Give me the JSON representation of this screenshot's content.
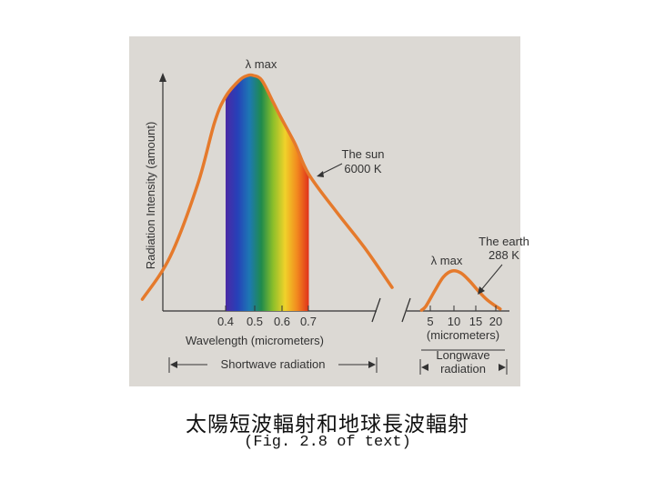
{
  "chart_data": [
    {
      "type": "line",
      "title": "",
      "ylabel": "Radiation Intensity (amount)",
      "xlabel": "Wavelength (micrometers)",
      "tick_labels": [
        "0.4",
        "0.5",
        "0.6",
        "0.7"
      ],
      "band_label": "Shortwave radiation",
      "peak_label": "λ max",
      "series": [
        {
          "name": "The sun 6000 K",
          "name_lines": [
            "The sun",
            "6000 K"
          ],
          "x": [
            0.1,
            0.2,
            0.3,
            0.36,
            0.4,
            0.45,
            0.48,
            0.5,
            0.53,
            0.57,
            0.6,
            0.65,
            0.7,
            0.8,
            0.9,
            1.0
          ],
          "y": [
            0.05,
            0.23,
            0.54,
            0.8,
            0.91,
            0.98,
            1.0,
            1.0,
            0.98,
            0.89,
            0.82,
            0.71,
            0.58,
            0.42,
            0.27,
            0.1
          ]
        }
      ],
      "visible_band": [
        0.4,
        0.7
      ],
      "grid": false
    },
    {
      "type": "line",
      "title": "",
      "xlabel": "(micrometers)",
      "tick_labels": [
        "5",
        "10",
        "15",
        "20"
      ],
      "band_label_lines": [
        "Longwave",
        "radiation"
      ],
      "peak_label": "λ max",
      "series": [
        {
          "name": "The earth 288 K",
          "name_lines": [
            "The earth",
            "288 K"
          ],
          "x": [
            3,
            4,
            6,
            8,
            10,
            12,
            14,
            16,
            18,
            20,
            21
          ],
          "y": [
            0.02,
            0.12,
            0.5,
            0.85,
            1.0,
            0.95,
            0.75,
            0.5,
            0.28,
            0.12,
            0.05
          ]
        }
      ],
      "grid": false
    }
  ],
  "caption": "太陽短波輻射和地球長波輻射",
  "subcaption": "(Fig. 2.8 of text)",
  "colors": {
    "panel": "#dcd9d4",
    "curve": "#e57a2c",
    "axis": "#333333",
    "spectrum": [
      "#4b2aa5",
      "#2640b8",
      "#1d78b4",
      "#1f8a4c",
      "#8cbf2a",
      "#f0d22a",
      "#f28a1e",
      "#e0311b"
    ]
  }
}
